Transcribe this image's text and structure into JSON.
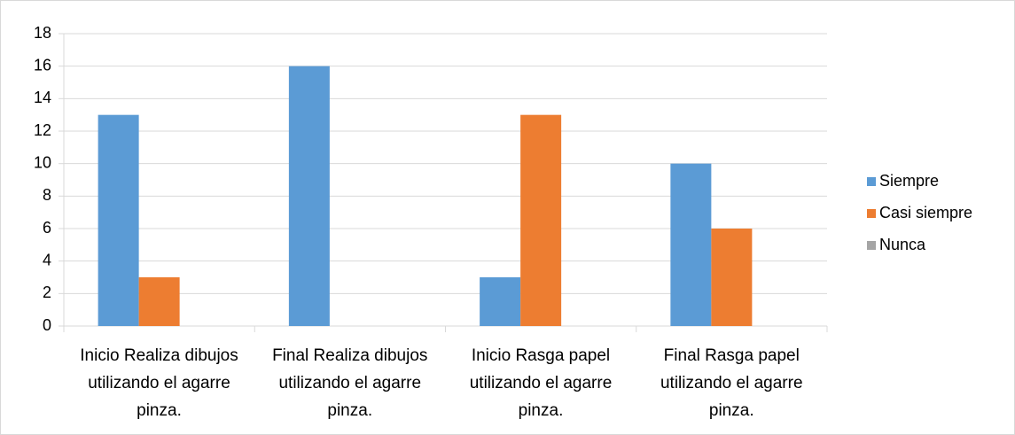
{
  "chart_data": {
    "type": "bar",
    "categories": [
      "Inicio Realiza dibujos utilizando el agarre pinza.",
      "Final Realiza dibujos utilizando el agarre pinza.",
      "Inicio Rasga papel utilizando el agarre pinza.",
      "Final Rasga papel utilizando el agarre pinza."
    ],
    "series": [
      {
        "name": "Siempre",
        "color": "#5b9bd5",
        "values": [
          13,
          16,
          3,
          10
        ]
      },
      {
        "name": "Casi siempre",
        "color": "#ed7d31",
        "values": [
          3,
          0,
          13,
          6
        ]
      },
      {
        "name": "Nunca",
        "color": "#a5a5a5",
        "values": [
          0,
          0,
          0,
          0
        ]
      }
    ],
    "ylim": [
      0,
      18
    ],
    "yticks": [
      0,
      2,
      4,
      6,
      8,
      10,
      12,
      14,
      16,
      18
    ],
    "grid": true,
    "legend": "right"
  }
}
